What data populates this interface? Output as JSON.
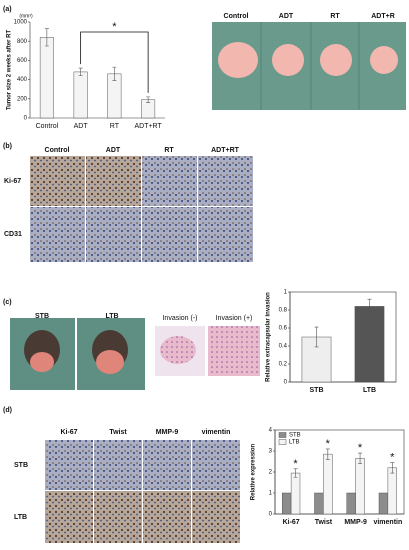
{
  "panels": {
    "a": {
      "label": "(a)",
      "photo_labels": [
        "Control",
        "ADT",
        "RT",
        "ADT+R"
      ]
    },
    "b": {
      "label": "(b)",
      "columns": [
        "Control",
        "ADT",
        "RT",
        "ADT+RT"
      ],
      "rows": [
        "Ki-67",
        "CD31"
      ]
    },
    "c": {
      "label": "(c)",
      "photo_labels": [
        "STB",
        "LTB"
      ],
      "histology_labels": [
        "Invasion (-)",
        "Invasion (+)"
      ]
    },
    "d": {
      "label": "(d)",
      "columns": [
        "Ki-67",
        "Twist",
        "MMP-9",
        "vimentin"
      ],
      "rows": [
        "STB",
        "LTB"
      ]
    }
  },
  "chart_data": [
    {
      "type": "bar",
      "y_label": "Tumor size 2 weeks after RT",
      "y_unit": "(mm³)",
      "categories": [
        "Control",
        "ADT",
        "RT",
        "ADT+RT"
      ],
      "series": [
        {
          "colors": [
            "#f4f4f4",
            "#f4f4f4",
            "#f4f4f4",
            "#f4f4f4"
          ],
          "values": [
            840,
            480,
            460,
            190
          ],
          "errors": [
            90,
            40,
            70,
            30
          ]
        }
      ],
      "ylim": [
        0,
        1000
      ],
      "yticks": [
        0,
        200,
        400,
        600,
        800,
        1000
      ],
      "annotation": "*"
    },
    {
      "type": "bar",
      "y_label": "Relative extracapsular invasion",
      "categories": [
        "STB",
        "LTB"
      ],
      "series": [
        {
          "colors": [
            "#eeeeee",
            "#555555"
          ],
          "values": [
            0.5,
            0.84
          ],
          "errors": [
            0.11,
            0.08
          ]
        }
      ],
      "ylim": [
        0,
        1
      ],
      "yticks": [
        0,
        0.2,
        0.4,
        0.6,
        0.8,
        1
      ]
    },
    {
      "type": "bar",
      "y_label": "Relative expression",
      "categories": [
        "Ki-67",
        "Twist",
        "MMP-9",
        "vimentin"
      ],
      "series": [
        {
          "name": "STB",
          "color": "#8c8c8c",
          "values": [
            1,
            1,
            1,
            1
          ]
        },
        {
          "name": "LTB",
          "color": "#f4f4f4",
          "values": [
            1.95,
            2.85,
            2.65,
            2.2
          ],
          "errors": [
            0.2,
            0.25,
            0.25,
            0.25
          ]
        }
      ],
      "ylim": [
        0,
        4
      ],
      "yticks": [
        0,
        1,
        2,
        3,
        4
      ],
      "annotation": "*",
      "legend": "top-left"
    }
  ]
}
